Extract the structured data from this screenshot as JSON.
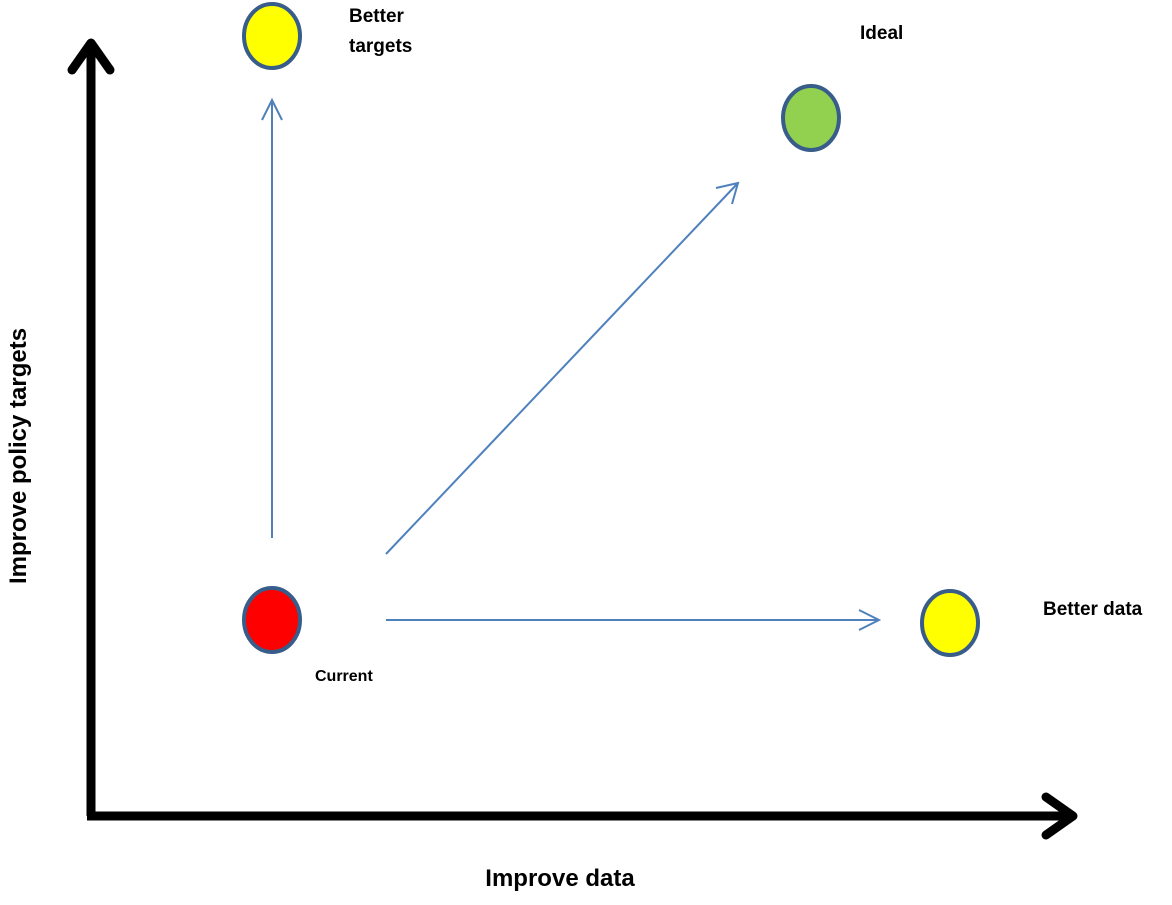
{
  "axes": {
    "x_label": "Improve data",
    "y_label": "Improve policy targets"
  },
  "nodes": {
    "current": {
      "label": "Current",
      "color": "#ff0000"
    },
    "better_targets": {
      "label_line1": "Better",
      "label_line2": "targets",
      "color": "#ffff00"
    },
    "ideal": {
      "label": "Ideal",
      "color": "#92d050"
    },
    "better_data": {
      "label": "Better data",
      "color": "#ffff00"
    }
  },
  "colors": {
    "axis": "#000000",
    "arrow": "#4f81bd",
    "node_outline": "#385d8a"
  }
}
